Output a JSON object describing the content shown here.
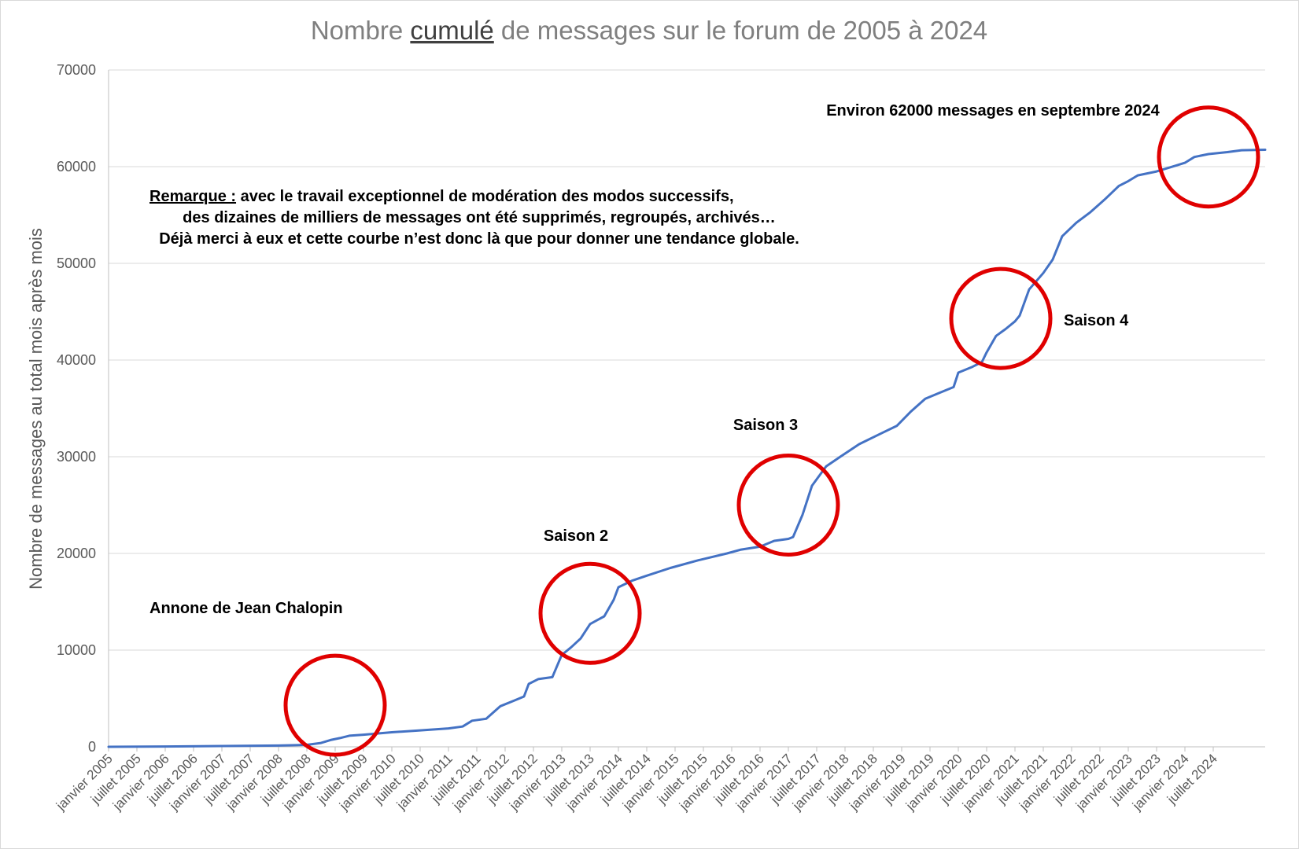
{
  "chart_data": {
    "type": "line",
    "title": {
      "before": "Nombre ",
      "emphasis": "cumulé",
      "after": " de messages sur le forum de 2005 à 2024"
    },
    "ylabel": "Nombre de messages au total mois après mois",
    "xlabel": "",
    "ylim": [
      0,
      70000
    ],
    "yticks": [
      "0",
      "10000",
      "20000",
      "30000",
      "40000",
      "50000",
      "60000",
      "70000"
    ],
    "grid": true,
    "x_labels": [
      "janvier 2005",
      "juillet 2005",
      "janvier 2006",
      "juillet 2006",
      "janvier 2007",
      "juillet 2007",
      "janvier 2008",
      "juillet 2008",
      "janvier 2009",
      "juillet 2009",
      "janvier 2010",
      "juillet 2010",
      "janvier 2011",
      "juillet 2011",
      "janvier 2012",
      "juillet 2012",
      "janvier 2013",
      "juillet 2013",
      "janvier 2014",
      "juillet 2014",
      "janvier 2015",
      "juillet 2015",
      "janvier 2016",
      "juillet 2016",
      "janvier 2017",
      "juillet 2017",
      "janvier 2018",
      "juillet 2018",
      "janvier 2019",
      "juillet 2019",
      "janvier 2020",
      "juillet 2020",
      "janvier 2021",
      "juillet 2021",
      "janvier 2022",
      "juillet 2022",
      "janvier 2023",
      "juillet 2023",
      "janvier 2024",
      "juillet 2024"
    ],
    "series": [
      {
        "color": "#4472c4",
        "points": [
          [
            "2005-01",
            0
          ],
          [
            "2006-01",
            30
          ],
          [
            "2007-01",
            80
          ],
          [
            "2008-01",
            130
          ],
          [
            "2008-07",
            200
          ],
          [
            "2008-10",
            400
          ],
          [
            "2008-12",
            700
          ],
          [
            "2009-02",
            900
          ],
          [
            "2009-04",
            1150
          ],
          [
            "2009-07",
            1250
          ],
          [
            "2010-01",
            1500
          ],
          [
            "2010-07",
            1700
          ],
          [
            "2011-01",
            1900
          ],
          [
            "2011-04",
            2100
          ],
          [
            "2011-06",
            2700
          ],
          [
            "2011-09",
            2900
          ],
          [
            "2011-12",
            4200
          ],
          [
            "2012-03",
            4800
          ],
          [
            "2012-05",
            5200
          ],
          [
            "2012-06",
            6500
          ],
          [
            "2012-08",
            7000
          ],
          [
            "2012-11",
            7200
          ],
          [
            "2013-01",
            9500
          ],
          [
            "2013-03",
            10300
          ],
          [
            "2013-05",
            11200
          ],
          [
            "2013-07",
            12700
          ],
          [
            "2013-10",
            13500
          ],
          [
            "2013-12",
            15200
          ],
          [
            "2014-01",
            16500
          ],
          [
            "2014-04",
            17200
          ],
          [
            "2014-07",
            17700
          ],
          [
            "2014-12",
            18500
          ],
          [
            "2015-06",
            19300
          ],
          [
            "2015-12",
            20000
          ],
          [
            "2016-03",
            20400
          ],
          [
            "2016-07",
            20700
          ],
          [
            "2016-10",
            21300
          ],
          [
            "2017-01",
            21500
          ],
          [
            "2017-02",
            21700
          ],
          [
            "2017-04",
            24000
          ],
          [
            "2017-06",
            27000
          ],
          [
            "2017-09",
            29000
          ],
          [
            "2017-12",
            30000
          ],
          [
            "2018-04",
            31300
          ],
          [
            "2018-09",
            32500
          ],
          [
            "2018-12",
            33200
          ],
          [
            "2019-03",
            34700
          ],
          [
            "2019-06",
            36000
          ],
          [
            "2019-09",
            36600
          ],
          [
            "2019-12",
            37200
          ],
          [
            "2020-01",
            38700
          ],
          [
            "2020-04",
            39300
          ],
          [
            "2020-06",
            39800
          ],
          [
            "2020-07",
            40800
          ],
          [
            "2020-09",
            42500
          ],
          [
            "2020-11",
            43200
          ],
          [
            "2021-01",
            44000
          ],
          [
            "2021-02",
            44600
          ],
          [
            "2021-04",
            47300
          ],
          [
            "2021-07",
            49000
          ],
          [
            "2021-09",
            50400
          ],
          [
            "2021-11",
            52800
          ],
          [
            "2022-02",
            54200
          ],
          [
            "2022-05",
            55300
          ],
          [
            "2022-08",
            56600
          ],
          [
            "2022-11",
            58000
          ],
          [
            "2023-01",
            58500
          ],
          [
            "2023-03",
            59100
          ],
          [
            "2023-07",
            59500
          ],
          [
            "2023-11",
            60100
          ],
          [
            "2024-01",
            60400
          ],
          [
            "2024-03",
            61000
          ],
          [
            "2024-06",
            61300
          ],
          [
            "2024-10",
            61500
          ],
          [
            "2025-01",
            61700
          ],
          [
            "2025-06",
            61750
          ]
        ]
      }
    ],
    "annotations": {
      "environ": "Environ 62000 messages en septembre 2024",
      "remarque_label": "Remarque :",
      "remarque_line1": " avec le travail exceptionnel de modération des modos successifs,",
      "remarque_line2": "des dizaines de milliers de messages ont été supprimés, regroupés, archivés…",
      "remarque_line3": "Déjà merci à eux et cette courbe n’est donc là que pour donner une tendance globale.",
      "saison2": "Saison 2",
      "saison3": "Saison 3",
      "saison4": "Saison 4",
      "annonce": "Annone de Jean Chalopin"
    },
    "highlight_circles": [
      {
        "x": "2009-01",
        "y": 4300,
        "color": "#e00000"
      },
      {
        "x": "2013-07",
        "y": 13800,
        "color": "#e00000"
      },
      {
        "x": "2017-01",
        "y": 25000,
        "color": "#e00000"
      },
      {
        "x": "2020-10",
        "y": 44300,
        "color": "#e00000"
      },
      {
        "x": "2024-06",
        "y": 61000,
        "color": "#e00000"
      }
    ],
    "colors": {
      "grid": "#d9d9d9",
      "axis": "#bfbfbf",
      "line": "#4472c4",
      "circle": "#e00000"
    }
  }
}
